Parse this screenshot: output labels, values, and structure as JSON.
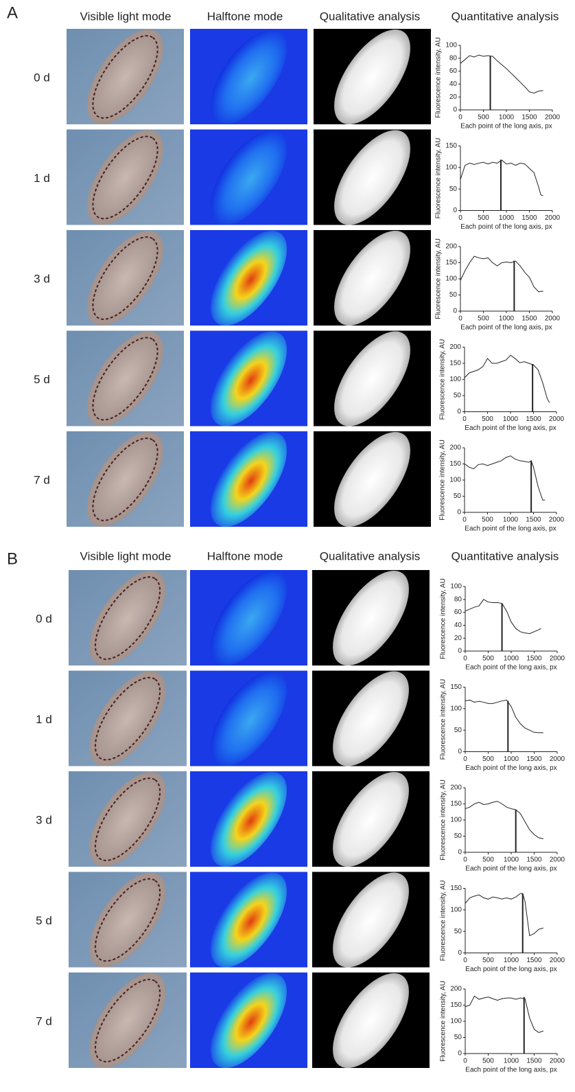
{
  "panels": [
    {
      "label": "A",
      "columns": [
        "Visible light mode",
        "Halftone mode",
        "Qualitative analysis",
        "Quantitative analysis"
      ],
      "rows": [
        "0 d",
        "1 d",
        "3 d",
        "5 d",
        "7 d"
      ]
    },
    {
      "label": "B",
      "columns": [
        "Visible light mode",
        "Halftone mode",
        "Qualitative analysis",
        "Quantitative analysis"
      ],
      "rows": [
        "0 d",
        "1 d",
        "3 d",
        "5 d",
        "7 d"
      ]
    }
  ],
  "chart_data": [
    {
      "type": "line",
      "xlabel": "Each point of the long axis, px",
      "ylabel": "Fluorescence intensity, AU",
      "x": [
        0,
        100,
        200,
        300,
        400,
        500,
        600,
        700,
        800,
        900,
        1000,
        1100,
        1200,
        1300,
        1400,
        1500,
        1600,
        1700,
        1800
      ],
      "values": [
        72,
        78,
        84,
        82,
        85,
        83,
        84,
        83,
        76,
        70,
        64,
        57,
        50,
        43,
        36,
        28,
        26,
        29,
        30
      ],
      "marker": {
        "x": 650,
        "y": 83
      },
      "color": "#222",
      "xlim": [
        0,
        2000
      ],
      "xticks": [
        0,
        500,
        1000,
        1500,
        2000
      ],
      "ylim": [
        0,
        100
      ],
      "yticks": [
        0,
        20,
        40,
        60,
        80,
        100
      ]
    },
    {
      "type": "line",
      "xlabel": "Each point of the long axis, px",
      "ylabel": "Fluorescence intensity, AU",
      "x": [
        0,
        100,
        200,
        300,
        400,
        500,
        600,
        700,
        800,
        900,
        1000,
        1100,
        1200,
        1300,
        1400,
        1500,
        1600,
        1700,
        1750,
        1800
      ],
      "values": [
        72,
        105,
        110,
        107,
        110,
        112,
        108,
        112,
        110,
        117,
        108,
        110,
        105,
        110,
        108,
        98,
        88,
        55,
        36,
        35
      ],
      "marker": {
        "x": 880,
        "y": 118
      },
      "color": "#222",
      "xlim": [
        0,
        2000
      ],
      "xticks": [
        0,
        500,
        1000,
        1500,
        2000
      ],
      "ylim": [
        0,
        150
      ],
      "yticks": [
        0,
        50,
        100,
        150
      ]
    },
    {
      "type": "line",
      "xlabel": "Each point of the long axis, px",
      "ylabel": "Fluorescence intensity, AU",
      "x": [
        0,
        100,
        200,
        300,
        400,
        500,
        600,
        700,
        800,
        900,
        1000,
        1100,
        1200,
        1300,
        1400,
        1500,
        1600,
        1700,
        1800
      ],
      "values": [
        95,
        125,
        150,
        170,
        165,
        162,
        165,
        150,
        140,
        150,
        152,
        150,
        155,
        140,
        120,
        105,
        75,
        60,
        62
      ],
      "marker": {
        "x": 1170,
        "y": 156
      },
      "color": "#222",
      "xlim": [
        0,
        2000
      ],
      "xticks": [
        0,
        500,
        1000,
        1500,
        2000
      ],
      "ylim": [
        0,
        200
      ],
      "yticks": [
        0,
        50,
        100,
        150,
        200
      ]
    },
    {
      "type": "line",
      "xlabel": "Each point of the long axis, px",
      "ylabel": "Fluorescence intensity, AU",
      "x": [
        0,
        100,
        200,
        300,
        400,
        500,
        600,
        700,
        800,
        900,
        1000,
        1100,
        1200,
        1300,
        1400,
        1500,
        1600,
        1700,
        1800,
        1850
      ],
      "values": [
        105,
        120,
        125,
        130,
        140,
        165,
        150,
        150,
        155,
        160,
        175,
        165,
        152,
        155,
        150,
        145,
        130,
        90,
        40,
        28
      ],
      "marker": {
        "x": 1480,
        "y": 148
      },
      "color": "#222",
      "xlim": [
        0,
        2000
      ],
      "xticks": [
        0,
        500,
        1000,
        1500,
        2000
      ],
      "ylim": [
        0,
        200
      ],
      "yticks": [
        0,
        50,
        100,
        150,
        200
      ]
    },
    {
      "type": "line",
      "xlabel": "Each point of the long axis, px",
      "ylabel": "Fluorescence intensity, AU",
      "x": [
        0,
        100,
        200,
        300,
        400,
        500,
        600,
        700,
        800,
        900,
        1000,
        1100,
        1200,
        1300,
        1400,
        1450,
        1500,
        1600,
        1700,
        1750
      ],
      "values": [
        150,
        140,
        135,
        148,
        150,
        145,
        150,
        155,
        160,
        170,
        175,
        165,
        160,
        158,
        155,
        160,
        140,
        80,
        38,
        38
      ],
      "marker": {
        "x": 1450,
        "y": 160
      },
      "color": "#222",
      "xlim": [
        0,
        2000
      ],
      "xticks": [
        0,
        500,
        1000,
        1500,
        2000
      ],
      "ylim": [
        0,
        200
      ],
      "yticks": [
        0,
        50,
        100,
        150,
        200
      ]
    },
    {
      "type": "line",
      "xlabel": "Each point of the long axis, px",
      "ylabel": "Fluorescence intensity, AU",
      "x": [
        0,
        100,
        200,
        300,
        400,
        500,
        600,
        700,
        800,
        900,
        1000,
        1100,
        1200,
        1300,
        1400,
        1500,
        1600,
        1650
      ],
      "values": [
        62,
        65,
        68,
        70,
        80,
        76,
        75,
        75,
        74,
        62,
        45,
        35,
        30,
        28,
        27,
        30,
        33,
        35
      ],
      "marker": {
        "x": 800,
        "y": 74
      },
      "color": "#222",
      "xlim": [
        0,
        2000
      ],
      "xticks": [
        0,
        500,
        1000,
        1500,
        2000
      ],
      "ylim": [
        0,
        100
      ],
      "yticks": [
        0,
        20,
        40,
        60,
        80,
        100
      ]
    },
    {
      "type": "line",
      "xlabel": "Each point of the long axis, px",
      "ylabel": "Fluorescence intensity, AU",
      "x": [
        0,
        100,
        200,
        300,
        400,
        500,
        600,
        700,
        800,
        900,
        1000,
        1100,
        1200,
        1300,
        1400,
        1500,
        1600,
        1700
      ],
      "values": [
        118,
        120,
        115,
        117,
        115,
        112,
        112,
        115,
        118,
        120,
        105,
        80,
        65,
        55,
        50,
        45,
        44,
        44
      ],
      "marker": {
        "x": 930,
        "y": 118
      },
      "color": "#222",
      "xlim": [
        0,
        2000
      ],
      "xticks": [
        0,
        500,
        1000,
        1500,
        2000
      ],
      "ylim": [
        0,
        150
      ],
      "yticks": [
        0,
        50,
        100,
        150
      ]
    },
    {
      "type": "line",
      "xlabel": "Each point of the long axis, px",
      "ylabel": "Fluorescence intensity, AU",
      "x": [
        0,
        100,
        200,
        300,
        400,
        500,
        600,
        700,
        800,
        900,
        1000,
        1100,
        1200,
        1300,
        1400,
        1500,
        1600,
        1700
      ],
      "values": [
        135,
        140,
        150,
        155,
        148,
        150,
        155,
        158,
        150,
        140,
        135,
        132,
        120,
        95,
        70,
        55,
        45,
        42
      ],
      "marker": {
        "x": 1100,
        "y": 132
      },
      "color": "#222",
      "xlim": [
        0,
        2000
      ],
      "xticks": [
        0,
        500,
        1000,
        1500,
        2000
      ],
      "ylim": [
        0,
        200
      ],
      "yticks": [
        0,
        50,
        100,
        150,
        200
      ]
    },
    {
      "type": "line",
      "xlabel": "Each point of the long axis, px",
      "ylabel": "Fluorescence intensity, AU",
      "x": [
        0,
        100,
        200,
        300,
        400,
        500,
        600,
        700,
        800,
        900,
        1000,
        1100,
        1200,
        1250,
        1300,
        1400,
        1500,
        1600,
        1700
      ],
      "values": [
        115,
        128,
        132,
        135,
        128,
        125,
        130,
        128,
        125,
        128,
        125,
        130,
        138,
        138,
        120,
        40,
        45,
        55,
        58
      ],
      "marker": {
        "x": 1250,
        "y": 138
      },
      "color": "#222",
      "xlim": [
        0,
        2000
      ],
      "xticks": [
        0,
        500,
        1000,
        1500,
        2000
      ],
      "ylim": [
        0,
        150
      ],
      "yticks": [
        0,
        50,
        100,
        150
      ]
    },
    {
      "type": "line",
      "xlabel": "Each point of the long axis, px",
      "ylabel": "Fluorescence intensity, AU",
      "x": [
        0,
        100,
        200,
        300,
        400,
        500,
        600,
        700,
        800,
        900,
        1000,
        1100,
        1200,
        1300,
        1400,
        1500,
        1600,
        1700
      ],
      "values": [
        145,
        150,
        178,
        168,
        172,
        175,
        170,
        165,
        170,
        172,
        172,
        168,
        172,
        170,
        110,
        75,
        65,
        70
      ],
      "marker": {
        "x": 1280,
        "y": 175
      },
      "color": "#222",
      "xlim": [
        0,
        2000
      ],
      "xticks": [
        0,
        500,
        1000,
        1500,
        2000
      ],
      "ylim": [
        0,
        200
      ],
      "yticks": [
        0,
        50,
        100,
        150,
        200
      ]
    }
  ]
}
